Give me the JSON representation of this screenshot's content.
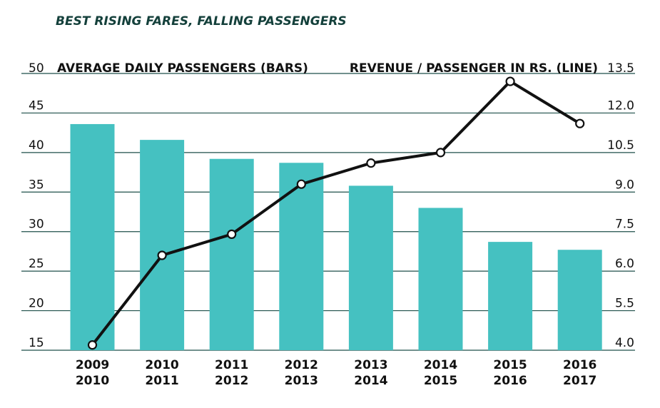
{
  "chart_data": {
    "type": "bar",
    "title": "BEST RISING FARES, FALLING PASSENGERS",
    "left_axis_label": "AVERAGE DAILY PASSENGERS (BARS)",
    "right_axis_label": "REVENUE / PASSENGER IN RS. (LINE)",
    "categories": [
      [
        "2009",
        "2010"
      ],
      [
        "2010",
        "2011"
      ],
      [
        "2011",
        "2012"
      ],
      [
        "2012",
        "2013"
      ],
      [
        "2013",
        "2014"
      ],
      [
        "2014",
        "2015"
      ],
      [
        "2015",
        "2016"
      ],
      [
        "2016",
        "2017"
      ]
    ],
    "left_ticks": [
      "15",
      "20",
      "25",
      "30",
      "35",
      "40",
      "45",
      "50"
    ],
    "right_ticks": [
      "4.0",
      "5.5",
      "6.0",
      "7.5",
      "9.0",
      "10.5",
      "12.0",
      "13.5"
    ],
    "left_range": [
      15,
      50
    ],
    "series": [
      {
        "name": "Average daily passengers",
        "type": "bar",
        "axis": "left",
        "values": [
          43.6,
          41.6,
          39.2,
          38.7,
          35.8,
          33.0,
          28.7,
          27.7
        ]
      },
      {
        "name": "Revenue / passenger in Rs.",
        "type": "line",
        "axis": "right",
        "values": [
          4.2,
          6.6,
          7.4,
          9.3,
          10.1,
          10.5,
          13.2,
          11.6
        ]
      }
    ],
    "colors": {
      "bar": "#45c1c1",
      "line": "#111111",
      "grid": "#1e4f4a",
      "title": "#14403b"
    },
    "grid": true
  }
}
